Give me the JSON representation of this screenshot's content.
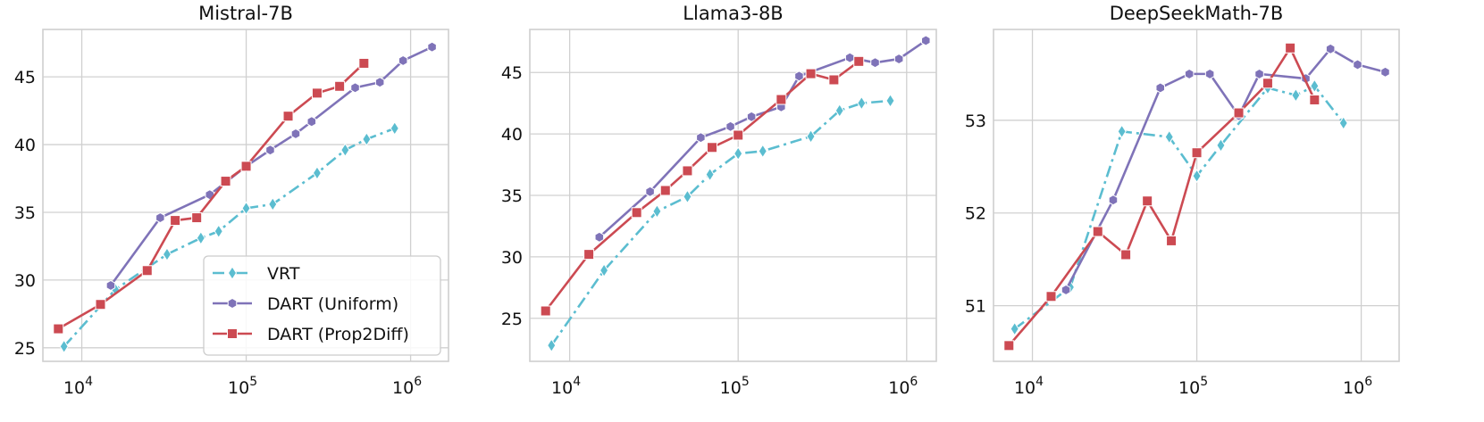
{
  "chart_data": [
    {
      "type": "line",
      "title": "Mistral-7B",
      "xscale": "log",
      "xlim": [
        5800,
        1700000
      ],
      "ylim": [
        24.0,
        48.5
      ],
      "yticks": [
        25,
        30,
        35,
        40,
        45
      ],
      "xticks": [
        10000,
        100000,
        1000000
      ],
      "xtick_labels": [
        [
          "10",
          "4"
        ],
        [
          "10",
          "5"
        ],
        [
          "10",
          "6"
        ]
      ],
      "grid": true,
      "legend": "lower-right",
      "series": [
        {
          "name": "VRT",
          "x": [
            7800,
            16000,
            33000,
            53000,
            68000,
            100000,
            145000,
            270000,
            400000,
            540000,
            800000
          ],
          "y": [
            25.1,
            29.3,
            31.9,
            33.1,
            33.6,
            35.3,
            35.6,
            37.9,
            39.6,
            40.4,
            41.2
          ]
        },
        {
          "name": "DART (Uniform)",
          "x": [
            15000,
            30000,
            60000,
            100000,
            140000,
            200000,
            250000,
            460000,
            650000,
            900000,
            1350000
          ],
          "y": [
            29.6,
            34.6,
            36.3,
            38.4,
            39.6,
            40.8,
            41.7,
            44.2,
            44.6,
            46.2,
            47.2
          ]
        },
        {
          "name": "DART (Prop2Diff)",
          "x": [
            7200,
            13000,
            25000,
            37000,
            50000,
            75000,
            100000,
            180000,
            270000,
            370000,
            520000
          ],
          "y": [
            26.4,
            28.2,
            30.7,
            34.4,
            34.6,
            37.3,
            38.4,
            42.1,
            43.8,
            44.3,
            46.0
          ]
        }
      ]
    },
    {
      "type": "line",
      "title": "Llama3-8B",
      "xscale": "log",
      "xlim": [
        5800,
        1500000
      ],
      "ylim": [
        21.5,
        48.5
      ],
      "yticks": [
        25,
        30,
        35,
        40,
        45
      ],
      "xticks": [
        10000,
        100000,
        1000000
      ],
      "xtick_labels": [
        [
          "10",
          "4"
        ],
        [
          "10",
          "5"
        ],
        [
          "10",
          "6"
        ]
      ],
      "grid": true,
      "series": [
        {
          "name": "VRT",
          "x": [
            7800,
            16000,
            33000,
            50000,
            68000,
            100000,
            140000,
            270000,
            400000,
            540000,
            800000
          ],
          "y": [
            22.8,
            28.9,
            33.7,
            34.9,
            36.7,
            38.4,
            38.6,
            39.8,
            41.9,
            42.5,
            42.7
          ]
        },
        {
          "name": "DART (Uniform)",
          "x": [
            15000,
            30000,
            60000,
            90000,
            120000,
            180000,
            230000,
            460000,
            650000,
            900000,
            1300000
          ],
          "y": [
            31.6,
            35.3,
            39.7,
            40.6,
            41.4,
            42.2,
            44.7,
            46.2,
            45.8,
            46.1,
            47.6
          ]
        },
        {
          "name": "DART (Prop2Diff)",
          "x": [
            7200,
            13000,
            25000,
            37000,
            50000,
            70000,
            100000,
            180000,
            270000,
            370000,
            520000
          ],
          "y": [
            25.6,
            30.2,
            33.6,
            35.4,
            37.0,
            38.9,
            39.9,
            42.8,
            44.9,
            44.4,
            45.9
          ]
        }
      ]
    },
    {
      "type": "line",
      "title": "DeepSeekMath-7B",
      "xscale": "log",
      "xlim": [
        5800,
        1700000
      ],
      "ylim": [
        50.4,
        53.98
      ],
      "yticks": [
        51,
        52,
        53
      ],
      "xticks": [
        10000,
        100000,
        1000000
      ],
      "xtick_labels": [
        [
          "10",
          "4"
        ],
        [
          "10",
          "5"
        ],
        [
          "10",
          "6"
        ]
      ],
      "grid": true,
      "series": [
        {
          "name": "VRT",
          "x": [
            7800,
            17000,
            35000,
            68000,
            100000,
            140000,
            270000,
            400000,
            520000,
            780000
          ],
          "y": [
            50.75,
            51.2,
            52.88,
            52.82,
            52.4,
            52.73,
            53.35,
            53.27,
            53.37,
            52.97
          ]
        },
        {
          "name": "DART (Uniform)",
          "x": [
            16000,
            31000,
            60000,
            90000,
            120000,
            180000,
            240000,
            460000,
            650000,
            950000,
            1400000
          ],
          "y": [
            51.17,
            52.14,
            53.35,
            53.5,
            53.5,
            53.05,
            53.5,
            53.45,
            53.77,
            53.6,
            53.52
          ]
        },
        {
          "name": "DART (Prop2Diff)",
          "x": [
            7200,
            13000,
            25000,
            37000,
            50000,
            70000,
            100000,
            180000,
            270000,
            370000,
            520000
          ],
          "y": [
            50.57,
            51.1,
            51.8,
            51.55,
            52.13,
            51.7,
            52.65,
            53.08,
            53.4,
            53.78,
            53.22
          ]
        }
      ]
    }
  ],
  "legend": [
    "VRT",
    "DART (Uniform)",
    "DART (Prop2Diff)"
  ],
  "colors": {
    "VRT": "#5bbdd0",
    "DART (Uniform)": "#7f73b8",
    "DART (Prop2Diff)": "#cc4a52",
    "grid": "#d0d0d0",
    "frame": "#cfcfcf"
  },
  "markers": {
    "VRT": "diamond",
    "DART (Uniform)": "hexagon",
    "DART (Prop2Diff)": "square"
  },
  "line_styles": {
    "VRT": "dashdot",
    "DART (Uniform)": "solid",
    "DART (Prop2Diff)": "solid"
  }
}
